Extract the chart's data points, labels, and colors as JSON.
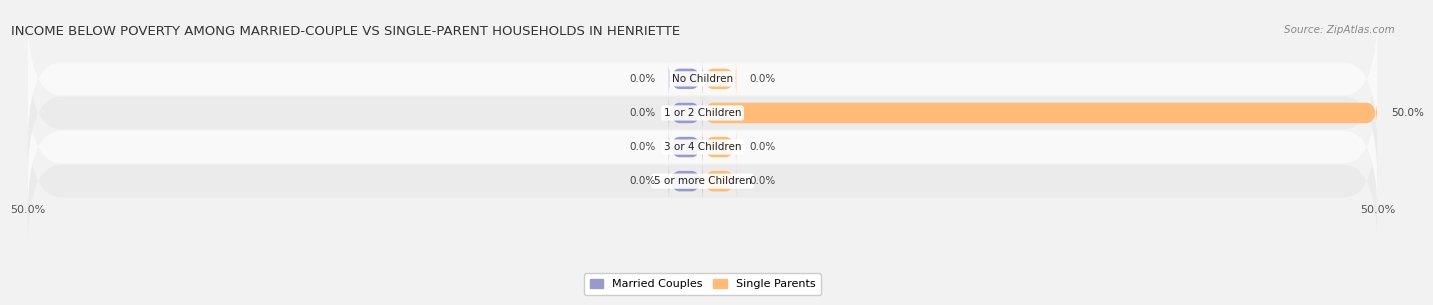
{
  "title": "INCOME BELOW POVERTY AMONG MARRIED-COUPLE VS SINGLE-PARENT HOUSEHOLDS IN HENRIETTE",
  "source_text": "Source: ZipAtlas.com",
  "categories": [
    "No Children",
    "1 or 2 Children",
    "3 or 4 Children",
    "5 or more Children"
  ],
  "married_couples": [
    0.0,
    0.0,
    0.0,
    0.0
  ],
  "single_parents": [
    0.0,
    50.0,
    0.0,
    0.0
  ],
  "axis_min": -50.0,
  "axis_max": 50.0,
  "married_color": "#9999cc",
  "single_color": "#ffbb77",
  "bar_height": 0.6,
  "background_color": "#f2f2f2",
  "row_bg_light": "#f9f9f9",
  "row_bg_dark": "#ebebeb",
  "title_fontsize": 9.5,
  "label_fontsize": 7.5,
  "tick_fontsize": 8,
  "legend_fontsize": 8,
  "source_fontsize": 7.5
}
